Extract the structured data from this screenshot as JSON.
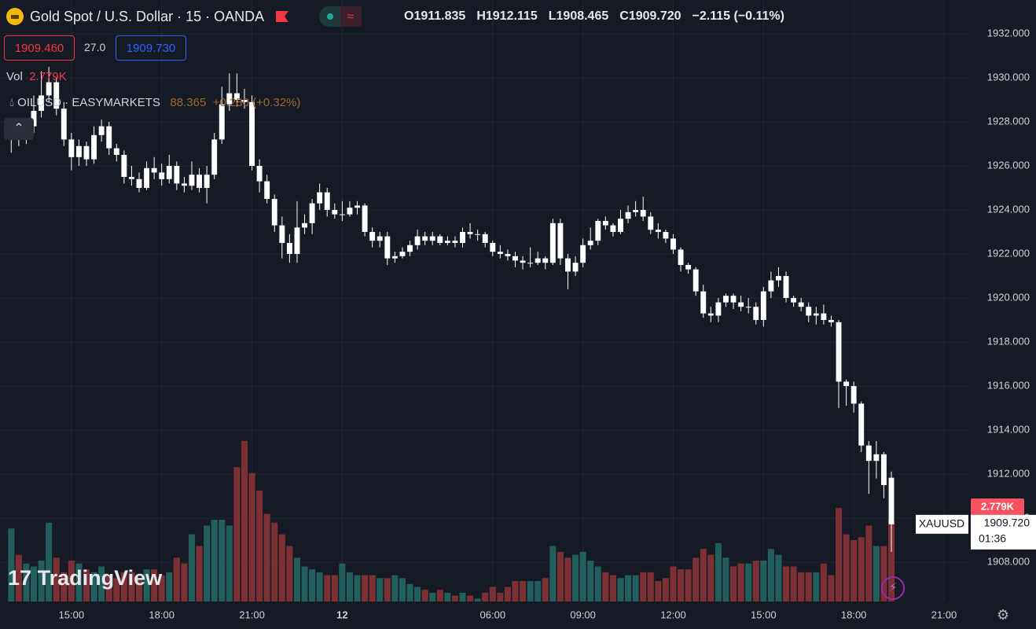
{
  "header": {
    "title": "Gold Spot / U.S. Dollar · 15 · OANDA",
    "ohlc": [
      {
        "key": "O",
        "value": "1911.835"
      },
      {
        "key": "H",
        "value": "1912.115"
      },
      {
        "key": "L",
        "value": "1908.465"
      },
      {
        "key": "C",
        "value": "1909.720"
      }
    ],
    "change": "−2.115 (−0.11%)"
  },
  "trade": {
    "sell": "1909.460",
    "spread": "27.0",
    "buy": "1909.730"
  },
  "volume_legend": {
    "label": "Vol",
    "value": "2.779K"
  },
  "compare": {
    "symbol": "OILUSD · EASYMARKETS",
    "price": "88.365",
    "change": "+0.280 (+0.32%)"
  },
  "price_tag": {
    "symbol": "XAUUSD",
    "price": "1909.720",
    "countdown": "01:36"
  },
  "volume_tag": "2.779K",
  "logo": "TradingView",
  "chart_data": {
    "type": "candlestick",
    "candle_color": "#ffffff",
    "up_volume_color": "#215e5c",
    "down_volume_color": "#7c3034",
    "grid": true,
    "xlim": [
      -1.494,
      127.03
    ],
    "ylim": [
      1906.214,
      1933.536
    ],
    "volume_ylim": [
      0,
      20.6
    ],
    "xticks": [
      {
        "value": 8,
        "label": "15:00"
      },
      {
        "value": 20,
        "label": "18:00"
      },
      {
        "value": 32,
        "label": "21:00"
      },
      {
        "value": 44,
        "label": "12"
      },
      {
        "value": 64,
        "label": "06:00"
      },
      {
        "value": 76,
        "label": "09:00"
      },
      {
        "value": 88,
        "label": "12:00"
      },
      {
        "value": 100,
        "label": "15:00"
      },
      {
        "value": 112,
        "label": "18:00"
      },
      {
        "value": 124,
        "label": "21:00"
      }
    ],
    "yticks": [
      {
        "value": 1908,
        "label": "1908.000"
      },
      {
        "value": 1910,
        "label": "1910.000"
      },
      {
        "value": 1912,
        "label": "1912.000"
      },
      {
        "value": 1914,
        "label": "1914.000"
      },
      {
        "value": 1916,
        "label": "1916.000"
      },
      {
        "value": 1918,
        "label": "1918.000"
      },
      {
        "value": 1920,
        "label": "1920.000"
      },
      {
        "value": 1922,
        "label": "1922.000"
      },
      {
        "value": 1924,
        "label": "1924.000"
      },
      {
        "value": 1926,
        "label": "1926.000"
      },
      {
        "value": 1928,
        "label": "1928.000"
      },
      {
        "value": 1930,
        "label": "1930.000"
      },
      {
        "value": 1932,
        "label": "1932.000"
      }
    ],
    "ohlc": [
      [
        1927.4,
        1928.0,
        1926.6,
        1927.6
      ],
      [
        1927.6,
        1927.9,
        1926.9,
        1927.3
      ],
      [
        1927.3,
        1928.1,
        1927.0,
        1927.8
      ],
      [
        1927.8,
        1929.2,
        1927.5,
        1928.5
      ],
      [
        1928.5,
        1930.3,
        1928.2,
        1929.2
      ],
      [
        1929.2,
        1930.5,
        1928.9,
        1929.8
      ],
      [
        1929.8,
        1930.0,
        1928.3,
        1928.6
      ],
      [
        1928.6,
        1928.9,
        1926.9,
        1927.2
      ],
      [
        1927.2,
        1927.5,
        1925.8,
        1926.4
      ],
      [
        1926.4,
        1927.2,
        1926.0,
        1926.9
      ],
      [
        1926.9,
        1927.1,
        1926.0,
        1926.3
      ],
      [
        1926.3,
        1927.8,
        1926.1,
        1927.4
      ],
      [
        1927.4,
        1928.1,
        1927.1,
        1927.8
      ],
      [
        1927.8,
        1928.0,
        1926.5,
        1926.8
      ],
      [
        1926.8,
        1927.0,
        1926.2,
        1926.5
      ],
      [
        1926.5,
        1926.7,
        1925.2,
        1925.5
      ],
      [
        1925.5,
        1926.0,
        1925.1,
        1925.4
      ],
      [
        1925.4,
        1925.7,
        1924.8,
        1925.0
      ],
      [
        1925.0,
        1926.2,
        1924.9,
        1925.9
      ],
      [
        1925.9,
        1926.4,
        1925.4,
        1925.7
      ],
      [
        1925.7,
        1926.1,
        1925.1,
        1925.4
      ],
      [
        1925.4,
        1926.5,
        1925.2,
        1926.0
      ],
      [
        1926.0,
        1926.2,
        1924.9,
        1925.2
      ],
      [
        1925.2,
        1925.5,
        1924.8,
        1925.1
      ],
      [
        1925.1,
        1926.2,
        1924.9,
        1925.6
      ],
      [
        1925.6,
        1925.9,
        1924.8,
        1925.0
      ],
      [
        1925.0,
        1926.0,
        1924.3,
        1925.6
      ],
      [
        1925.6,
        1927.5,
        1925.4,
        1927.2
      ],
      [
        1927.2,
        1929.6,
        1927.0,
        1928.8
      ],
      [
        1928.8,
        1930.2,
        1928.5,
        1929.3
      ],
      [
        1929.3,
        1930.2,
        1928.7,
        1929.0
      ],
      [
        1929.0,
        1929.5,
        1928.6,
        1928.9
      ],
      [
        1928.9,
        1929.2,
        1925.8,
        1926.0
      ],
      [
        1926.0,
        1926.3,
        1924.8,
        1925.3
      ],
      [
        1925.3,
        1925.6,
        1924.3,
        1924.5
      ],
      [
        1924.5,
        1924.7,
        1923.0,
        1923.3
      ],
      [
        1923.3,
        1923.7,
        1921.8,
        1922.5
      ],
      [
        1922.5,
        1922.9,
        1921.6,
        1922.0
      ],
      [
        1922.0,
        1924.4,
        1921.6,
        1923.2
      ],
      [
        1923.2,
        1923.8,
        1922.9,
        1923.4
      ],
      [
        1923.4,
        1924.5,
        1922.9,
        1924.3
      ],
      [
        1924.3,
        1925.2,
        1924.0,
        1924.8
      ],
      [
        1924.8,
        1925.0,
        1923.7,
        1924.0
      ],
      [
        1924.0,
        1924.3,
        1923.6,
        1923.8
      ],
      [
        1923.8,
        1924.4,
        1923.5,
        1923.8
      ],
      [
        1923.8,
        1924.4,
        1923.7,
        1924.1
      ],
      [
        1924.1,
        1924.4,
        1923.8,
        1924.2
      ],
      [
        1924.2,
        1924.3,
        1922.8,
        1923.0
      ],
      [
        1923.0,
        1923.2,
        1922.3,
        1922.6
      ],
      [
        1922.6,
        1923.0,
        1922.3,
        1922.8
      ],
      [
        1922.8,
        1923.0,
        1921.5,
        1921.8
      ],
      [
        1921.8,
        1922.1,
        1921.6,
        1921.9
      ],
      [
        1921.9,
        1922.3,
        1921.8,
        1922.1
      ],
      [
        1922.1,
        1922.6,
        1921.9,
        1922.4
      ],
      [
        1922.4,
        1923.1,
        1922.2,
        1922.8
      ],
      [
        1922.8,
        1923.0,
        1922.4,
        1922.6
      ],
      [
        1922.6,
        1923.0,
        1922.4,
        1922.8
      ],
      [
        1922.8,
        1922.9,
        1922.4,
        1922.5
      ],
      [
        1922.5,
        1922.8,
        1922.4,
        1922.6
      ],
      [
        1922.6,
        1922.8,
        1922.3,
        1922.5
      ],
      [
        1922.5,
        1923.2,
        1922.3,
        1923.0
      ],
      [
        1923.0,
        1923.4,
        1922.7,
        1922.9
      ],
      [
        1922.9,
        1923.1,
        1922.6,
        1922.9
      ],
      [
        1922.9,
        1923.0,
        1922.3,
        1922.5
      ],
      [
        1922.5,
        1922.6,
        1921.9,
        1922.1
      ],
      [
        1922.1,
        1922.4,
        1921.8,
        1922.0
      ],
      [
        1922.0,
        1922.2,
        1921.7,
        1921.9
      ],
      [
        1921.9,
        1922.1,
        1921.4,
        1921.7
      ],
      [
        1921.7,
        1921.9,
        1921.3,
        1921.6
      ],
      [
        1921.6,
        1922.3,
        1921.4,
        1921.6
      ],
      [
        1921.6,
        1922.1,
        1921.5,
        1921.8
      ],
      [
        1921.8,
        1921.9,
        1921.3,
        1921.6
      ],
      [
        1921.6,
        1923.6,
        1921.5,
        1923.4
      ],
      [
        1923.4,
        1923.6,
        1921.5,
        1921.8
      ],
      [
        1921.8,
        1922.0,
        1920.4,
        1921.2
      ],
      [
        1921.2,
        1921.9,
        1921.0,
        1921.6
      ],
      [
        1921.6,
        1922.7,
        1921.4,
        1922.4
      ],
      [
        1922.4,
        1923.2,
        1922.2,
        1922.6
      ],
      [
        1922.6,
        1923.6,
        1922.4,
        1923.5
      ],
      [
        1923.5,
        1923.7,
        1923.1,
        1923.3
      ],
      [
        1923.3,
        1923.4,
        1922.8,
        1923.0
      ],
      [
        1923.0,
        1924.0,
        1922.9,
        1923.6
      ],
      [
        1923.6,
        1924.2,
        1923.4,
        1923.9
      ],
      [
        1923.9,
        1924.4,
        1923.7,
        1924.0
      ],
      [
        1924.0,
        1924.6,
        1923.5,
        1923.7
      ],
      [
        1923.7,
        1923.9,
        1922.9,
        1923.1
      ],
      [
        1923.1,
        1923.4,
        1922.7,
        1923.0
      ],
      [
        1923.0,
        1923.1,
        1922.5,
        1922.7
      ],
      [
        1922.7,
        1922.9,
        1922.0,
        1922.2
      ],
      [
        1922.2,
        1922.3,
        1921.2,
        1921.5
      ],
      [
        1921.5,
        1921.6,
        1921.1,
        1921.3
      ],
      [
        1921.3,
        1921.4,
        1920.1,
        1920.3
      ],
      [
        1920.3,
        1920.6,
        1919.1,
        1919.3
      ],
      [
        1919.3,
        1919.6,
        1918.9,
        1919.2
      ],
      [
        1919.2,
        1920.0,
        1918.9,
        1919.8
      ],
      [
        1919.8,
        1920.2,
        1919.6,
        1920.1
      ],
      [
        1920.1,
        1920.2,
        1919.5,
        1919.8
      ],
      [
        1919.8,
        1920.1,
        1919.4,
        1919.6
      ],
      [
        1919.6,
        1920.0,
        1919.3,
        1919.6
      ],
      [
        1919.6,
        1919.8,
        1918.8,
        1919.0
      ],
      [
        1919.0,
        1920.5,
        1918.7,
        1920.3
      ],
      [
        1920.3,
        1921.2,
        1920.0,
        1920.8
      ],
      [
        1920.8,
        1921.4,
        1920.5,
        1921.0
      ],
      [
        1921.0,
        1921.2,
        1919.8,
        1920.0
      ],
      [
        1920.0,
        1920.1,
        1919.6,
        1919.8
      ],
      [
        1919.8,
        1920.0,
        1919.4,
        1919.6
      ],
      [
        1919.6,
        1919.8,
        1918.9,
        1919.2
      ],
      [
        1919.2,
        1919.6,
        1918.8,
        1919.3
      ],
      [
        1919.3,
        1919.7,
        1918.8,
        1919.0
      ],
      [
        1919.0,
        1919.2,
        1918.7,
        1918.9
      ],
      [
        1918.9,
        1919.0,
        1915.0,
        1916.2
      ],
      [
        1916.2,
        1916.3,
        1915.1,
        1916.0
      ],
      [
        1916.0,
        1916.2,
        1914.8,
        1915.2
      ],
      [
        1915.2,
        1915.3,
        1913.0,
        1913.3
      ],
      [
        1913.3,
        1913.5,
        1911.1,
        1912.6
      ],
      [
        1912.6,
        1913.5,
        1911.8,
        1912.9
      ],
      [
        1912.9,
        1913.0,
        1910.9,
        1911.5
      ],
      [
        1911.835,
        1912.115,
        1908.465,
        1909.72
      ]
    ],
    "volume": [
      2.5,
      1.6,
      1.3,
      1.2,
      1.4,
      2.7,
      1.5,
      1.0,
      1.4,
      1.3,
      1.1,
      1.0,
      1.2,
      0.9,
      0.8,
      1.0,
      1.0,
      0.8,
      1.1,
      1.1,
      0.9,
      1.0,
      1.5,
      1.3,
      2.3,
      1.9,
      2.6,
      2.8,
      2.8,
      2.6,
      4.6,
      5.5,
      4.4,
      3.8,
      3.0,
      2.7,
      2.3,
      1.9,
      1.5,
      1.2,
      1.1,
      1.0,
      0.9,
      0.9,
      1.3,
      1.0,
      0.9,
      0.9,
      0.9,
      0.8,
      0.8,
      0.9,
      0.8,
      0.6,
      0.5,
      0.4,
      0.3,
      0.4,
      0.3,
      0.2,
      0.3,
      0.2,
      0.1,
      0.3,
      0.5,
      0.3,
      0.5,
      0.7,
      0.7,
      0.7,
      0.7,
      0.8,
      1.9,
      1.7,
      1.5,
      1.6,
      1.7,
      1.4,
      1.2,
      1.0,
      0.9,
      0.8,
      0.9,
      0.9,
      1.0,
      1.0,
      0.7,
      0.8,
      1.2,
      1.1,
      1.1,
      1.5,
      1.8,
      1.6,
      2.0,
      1.5,
      1.2,
      1.3,
      1.3,
      1.4,
      1.4,
      1.8,
      1.6,
      1.2,
      1.2,
      1.0,
      1.0,
      1.0,
      1.3,
      0.9,
      3.2,
      2.3,
      2.1,
      2.2,
      2.6,
      1.9,
      1.9,
      2.779
    ]
  }
}
